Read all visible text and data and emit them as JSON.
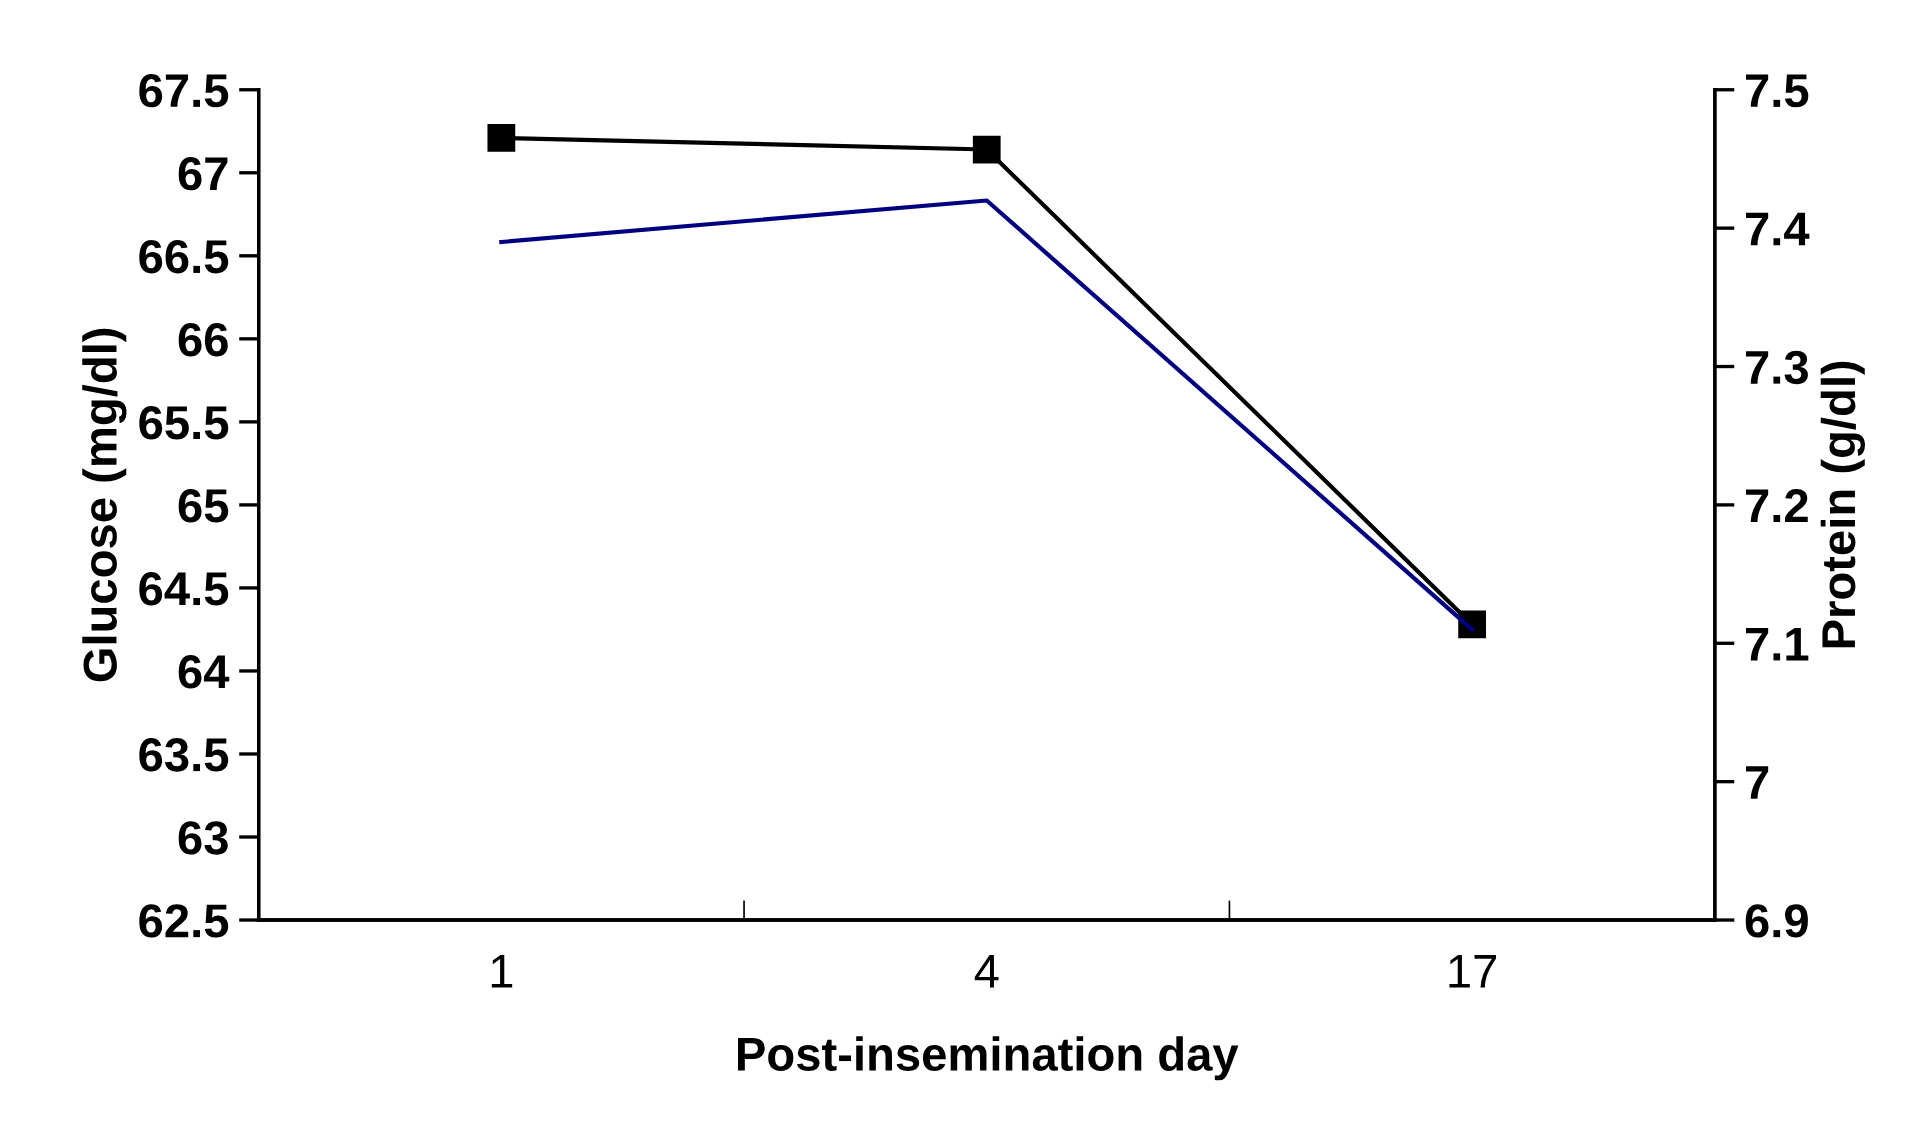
{
  "chart_data": {
    "type": "line",
    "xlabel": "Post-insemination day",
    "ylabel": "Glucose (mg/dl)",
    "y2label": "Protein (g/dl)",
    "categories": [
      "1",
      "4",
      "17"
    ],
    "series": [
      {
        "color": "#000000",
        "values": [
          67.21,
          67.14,
          64.28
        ],
        "marker": "square"
      },
      {
        "color": "#000080",
        "values": [
          7.39,
          7.42,
          7.11
        ],
        "axis": "y2",
        "marker": "none"
      }
    ],
    "ylim": [
      62.5,
      67.5
    ],
    "yticks": [
      62.5,
      63,
      63.5,
      64,
      64.5,
      65,
      65.5,
      66,
      66.5,
      67,
      67.5
    ],
    "y2lim": [
      6.9,
      7.5
    ],
    "y2ticks": [
      6.9,
      7,
      7.1,
      7.2,
      7.3,
      7.4,
      7.5
    ],
    "grid": false,
    "legend": false
  }
}
